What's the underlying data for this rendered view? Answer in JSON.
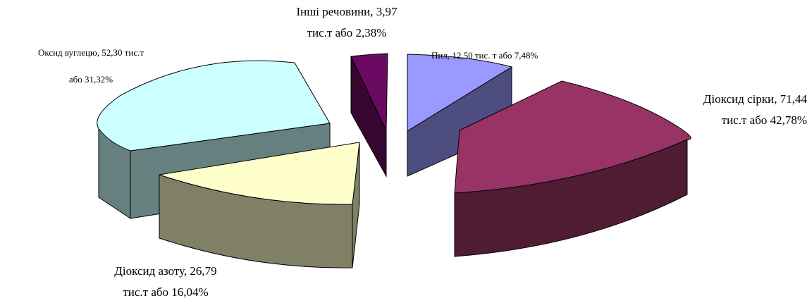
{
  "chart_data": {
    "type": "pie",
    "style": "3d-exploded",
    "title": "",
    "unit": "тис.т",
    "slices": [
      {
        "name": "Діоксид сірки",
        "value": 71.44,
        "percent": 42.78,
        "color": "#993366",
        "side_color": "#4f1c34"
      },
      {
        "name": "Діоксид азоту",
        "value": 26.79,
        "percent": 16.04,
        "color": "#ffffcc",
        "side_color": "#808066"
      },
      {
        "name": "Оксид вуглецю",
        "value": 52.3,
        "percent": 31.32,
        "color": "#ccffff",
        "side_color": "#668080"
      },
      {
        "name": "Інші речовини",
        "value": 3.97,
        "percent": 2.38,
        "color": "#6b0a62",
        "side_color": "#360530"
      },
      {
        "name": "Пил",
        "value": 12.5,
        "percent": 7.48,
        "color": "#9999ff",
        "side_color": "#4d4d80"
      }
    ]
  },
  "labels": {
    "other": {
      "line1": "Інші речовини, 3,97",
      "line2": "тис.т або 2,38%"
    },
    "dust": {
      "line1": "Пил, 12,50 тис. т або 7,48%"
    },
    "so2": {
      "line1": "Діоксид сірки, 71,44",
      "line2": "тис.т або 42,78%"
    },
    "co": {
      "line1": "Оксид вуглецю, 52,30 тис.т",
      "line2": "або 31,32%"
    },
    "no2": {
      "line1": "Діоксид азоту, 26,79",
      "line2": "тис.т або 16,04%"
    }
  }
}
